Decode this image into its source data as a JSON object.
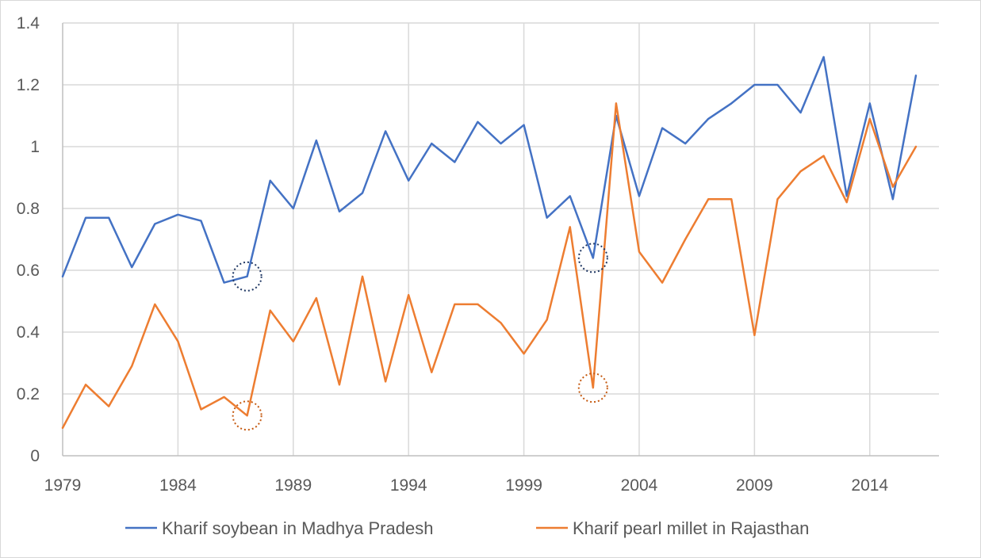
{
  "chart_data": {
    "type": "line",
    "title": "",
    "xlabel": "",
    "ylabel": "",
    "xlim": [
      1979,
      2017
    ],
    "ylim": [
      0,
      1.4
    ],
    "grid": true,
    "legend_position": "bottom",
    "y_ticks": [
      {
        "value": 0,
        "label": "0"
      },
      {
        "value": 0.2,
        "label": "0.2"
      },
      {
        "value": 0.4,
        "label": "0.4"
      },
      {
        "value": 0.6,
        "label": "0.6"
      },
      {
        "value": 0.8,
        "label": "0.8"
      },
      {
        "value": 1.0,
        "label": "1"
      },
      {
        "value": 1.2,
        "label": "1.2"
      },
      {
        "value": 1.4,
        "label": "1.4"
      }
    ],
    "x_ticks": [
      {
        "value": 1979,
        "label": "1979"
      },
      {
        "value": 1984,
        "label": "1984"
      },
      {
        "value": 1989,
        "label": "1989"
      },
      {
        "value": 1994,
        "label": "1994"
      },
      {
        "value": 1999,
        "label": "1999"
      },
      {
        "value": 2004,
        "label": "2004"
      },
      {
        "value": 2009,
        "label": "2009"
      },
      {
        "value": 2014,
        "label": "2014"
      }
    ],
    "x": [
      1979,
      1980,
      1981,
      1982,
      1983,
      1984,
      1985,
      1986,
      1987,
      1988,
      1989,
      1990,
      1991,
      1992,
      1993,
      1994,
      1995,
      1996,
      1997,
      1998,
      1999,
      2000,
      2001,
      2002,
      2003,
      2004,
      2005,
      2006,
      2007,
      2008,
      2009,
      2010,
      2011,
      2012,
      2013,
      2014,
      2015,
      2016
    ],
    "series": [
      {
        "name": "Kharif soybean in Madhya Pradesh",
        "color": "#4472c4",
        "values": [
          0.58,
          0.77,
          0.77,
          0.61,
          0.75,
          0.78,
          0.76,
          0.56,
          0.58,
          0.89,
          0.8,
          1.02,
          0.79,
          0.85,
          1.05,
          0.89,
          1.01,
          0.95,
          1.08,
          1.01,
          1.07,
          0.77,
          0.84,
          0.64,
          1.1,
          0.84,
          1.06,
          1.01,
          1.09,
          1.14,
          1.2,
          1.2,
          1.11,
          1.29,
          0.84,
          1.14,
          0.83,
          1.23
        ]
      },
      {
        "name": "Kharif pearl millet in Rajasthan",
        "color": "#ed7d31",
        "values": [
          0.09,
          0.23,
          0.16,
          0.29,
          0.49,
          0.37,
          0.15,
          0.19,
          0.13,
          0.47,
          0.37,
          0.51,
          0.23,
          0.58,
          0.24,
          0.52,
          0.27,
          0.49,
          0.49,
          0.43,
          0.33,
          0.44,
          0.74,
          0.22,
          1.14,
          0.66,
          0.56,
          0.7,
          0.83,
          0.83,
          0.39,
          0.83,
          0.92,
          0.97,
          0.82,
          1.09,
          0.87,
          1.0
        ]
      }
    ],
    "highlights": [
      {
        "series": "Kharif soybean in Madhya Pradesh",
        "x": 1987,
        "y": 0.58,
        "color": "#203864"
      },
      {
        "series": "Kharif soybean in Madhya Pradesh",
        "x": 2002,
        "y": 0.64,
        "color": "#203864"
      },
      {
        "series": "Kharif pearl millet in Rajasthan",
        "x": 1987,
        "y": 0.13,
        "color": "#c55a11"
      },
      {
        "series": "Kharif pearl millet in Rajasthan",
        "x": 2002,
        "y": 0.22,
        "color": "#c55a11"
      }
    ]
  }
}
